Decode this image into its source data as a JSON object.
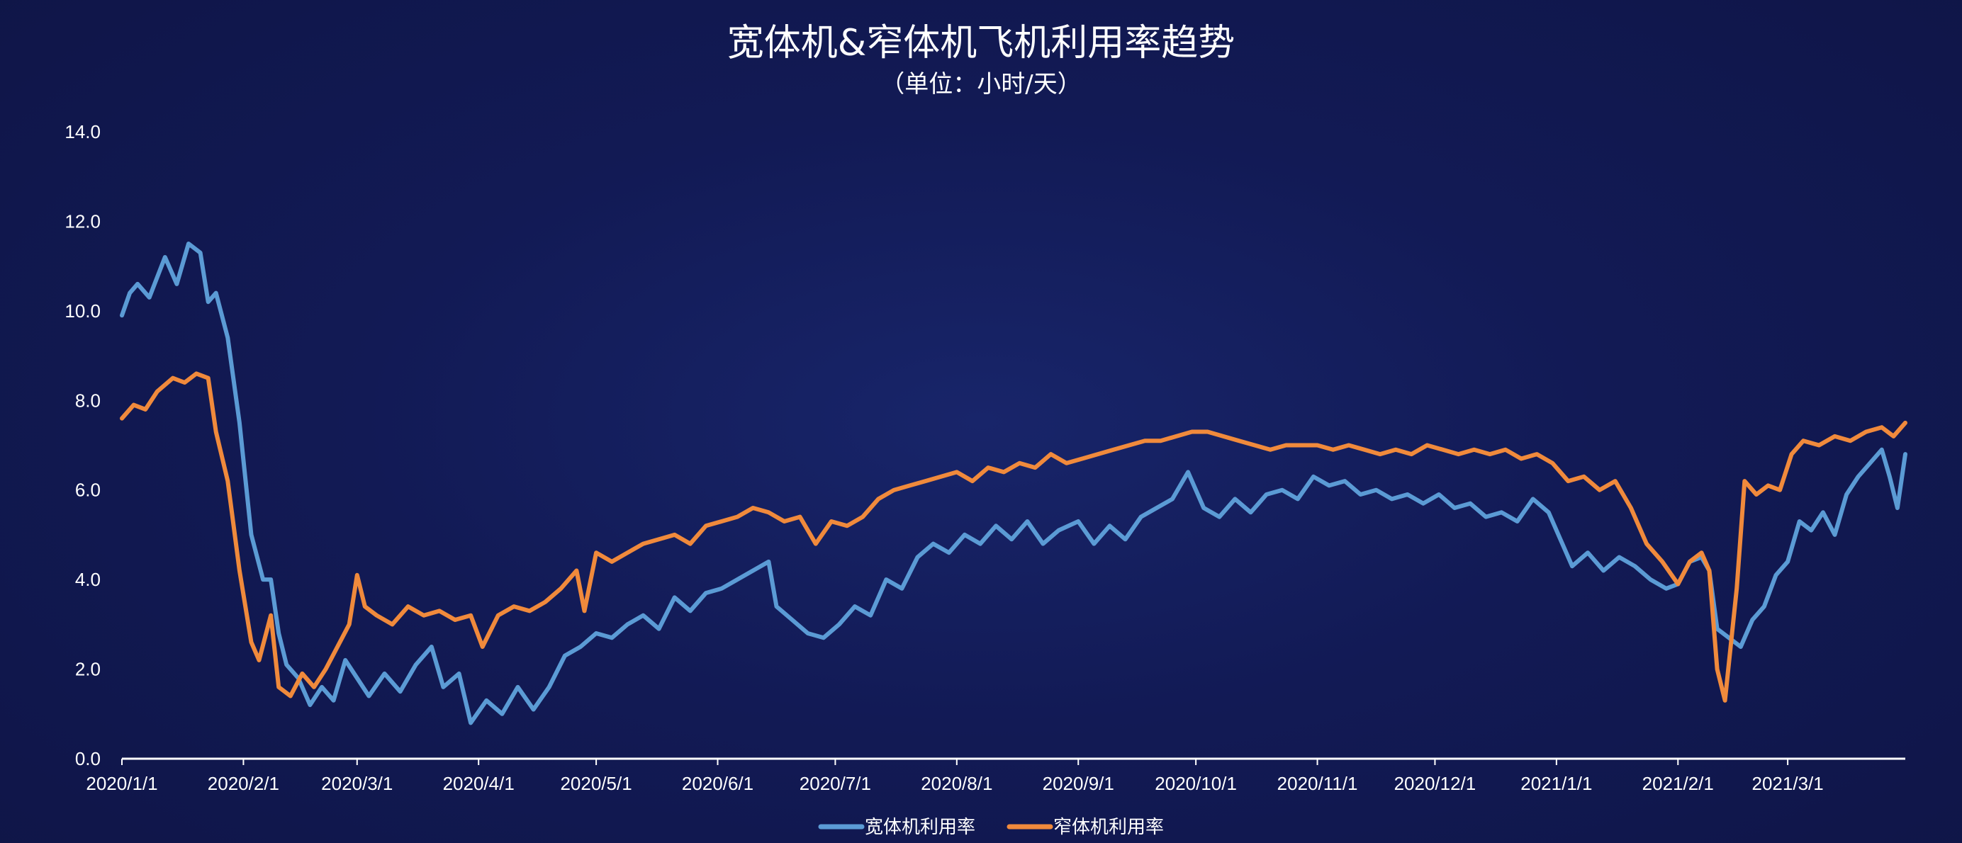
{
  "chart_data": {
    "type": "line",
    "title": "宽体机&窄体机飞机利用率趋势",
    "subtitle": "（单位：小时/天）",
    "ylim": [
      0,
      14
    ],
    "y_ticks": [
      "0.0",
      "2.0",
      "4.0",
      "6.0",
      "8.0",
      "10.0",
      "12.0",
      "14.0"
    ],
    "x_range": [
      "2020/1/1",
      "2021/3/31"
    ],
    "x_ticks": [
      "2020/1/1",
      "2020/2/1",
      "2020/3/1",
      "2020/4/1",
      "2020/5/1",
      "2020/6/1",
      "2020/7/1",
      "2020/8/1",
      "2020/9/1",
      "2020/10/1",
      "2020/11/1",
      "2020/12/1",
      "2021/1/1",
      "2021/2/1",
      "2021/3/1"
    ],
    "grid": false,
    "legend_position": "bottom",
    "series": [
      {
        "name": "宽体机利用率",
        "color": "#5b9bd5",
        "points": [
          [
            "2020/1/1",
            9.9
          ],
          [
            "2020/1/3",
            10.4
          ],
          [
            "2020/1/5",
            10.6
          ],
          [
            "2020/1/8",
            10.3
          ],
          [
            "2020/1/12",
            11.2
          ],
          [
            "2020/1/15",
            10.6
          ],
          [
            "2020/1/18",
            11.5
          ],
          [
            "2020/1/21",
            11.3
          ],
          [
            "2020/1/23",
            10.2
          ],
          [
            "2020/1/25",
            10.4
          ],
          [
            "2020/1/28",
            9.4
          ],
          [
            "2020/1/31",
            7.5
          ],
          [
            "2020/2/3",
            5.0
          ],
          [
            "2020/2/6",
            4.0
          ],
          [
            "2020/2/8",
            4.0
          ],
          [
            "2020/2/10",
            2.8
          ],
          [
            "2020/2/12",
            2.1
          ],
          [
            "2020/2/15",
            1.8
          ],
          [
            "2020/2/18",
            1.2
          ],
          [
            "2020/2/21",
            1.6
          ],
          [
            "2020/2/24",
            1.3
          ],
          [
            "2020/2/27",
            2.2
          ],
          [
            "2020/3/1",
            1.8
          ],
          [
            "2020/3/4",
            1.4
          ],
          [
            "2020/3/8",
            1.9
          ],
          [
            "2020/3/12",
            1.5
          ],
          [
            "2020/3/16",
            2.1
          ],
          [
            "2020/3/20",
            2.5
          ],
          [
            "2020/3/23",
            1.6
          ],
          [
            "2020/3/27",
            1.9
          ],
          [
            "2020/3/30",
            0.8
          ],
          [
            "2020/4/3",
            1.3
          ],
          [
            "2020/4/7",
            1.0
          ],
          [
            "2020/4/11",
            1.6
          ],
          [
            "2020/4/15",
            1.1
          ],
          [
            "2020/4/19",
            1.6
          ],
          [
            "2020/4/23",
            2.3
          ],
          [
            "2020/4/27",
            2.5
          ],
          [
            "2020/5/1",
            2.8
          ],
          [
            "2020/5/5",
            2.7
          ],
          [
            "2020/5/9",
            3.0
          ],
          [
            "2020/5/13",
            3.2
          ],
          [
            "2020/5/17",
            2.9
          ],
          [
            "2020/5/21",
            3.6
          ],
          [
            "2020/5/25",
            3.3
          ],
          [
            "2020/5/29",
            3.7
          ],
          [
            "2020/6/2",
            3.8
          ],
          [
            "2020/6/6",
            4.0
          ],
          [
            "2020/6/10",
            4.2
          ],
          [
            "2020/6/14",
            4.4
          ],
          [
            "2020/6/16",
            3.4
          ],
          [
            "2020/6/20",
            3.1
          ],
          [
            "2020/6/24",
            2.8
          ],
          [
            "2020/6/28",
            2.7
          ],
          [
            "2020/7/2",
            3.0
          ],
          [
            "2020/7/6",
            3.4
          ],
          [
            "2020/7/10",
            3.2
          ],
          [
            "2020/7/14",
            4.0
          ],
          [
            "2020/7/18",
            3.8
          ],
          [
            "2020/7/22",
            4.5
          ],
          [
            "2020/7/26",
            4.8
          ],
          [
            "2020/7/30",
            4.6
          ],
          [
            "2020/8/3",
            5.0
          ],
          [
            "2020/8/7",
            4.8
          ],
          [
            "2020/8/11",
            5.2
          ],
          [
            "2020/8/15",
            4.9
          ],
          [
            "2020/8/19",
            5.3
          ],
          [
            "2020/8/23",
            4.8
          ],
          [
            "2020/8/27",
            5.1
          ],
          [
            "2020/9/1",
            5.3
          ],
          [
            "2020/9/5",
            4.8
          ],
          [
            "2020/9/9",
            5.2
          ],
          [
            "2020/9/13",
            4.9
          ],
          [
            "2020/9/17",
            5.4
          ],
          [
            "2020/9/21",
            5.6
          ],
          [
            "2020/9/25",
            5.8
          ],
          [
            "2020/9/29",
            6.4
          ],
          [
            "2020/10/3",
            5.6
          ],
          [
            "2020/10/7",
            5.4
          ],
          [
            "2020/10/11",
            5.8
          ],
          [
            "2020/10/15",
            5.5
          ],
          [
            "2020/10/19",
            5.9
          ],
          [
            "2020/10/23",
            6.0
          ],
          [
            "2020/10/27",
            5.8
          ],
          [
            "2020/10/31",
            6.3
          ],
          [
            "2020/11/4",
            6.1
          ],
          [
            "2020/11/8",
            6.2
          ],
          [
            "2020/11/12",
            5.9
          ],
          [
            "2020/11/16",
            6.0
          ],
          [
            "2020/11/20",
            5.8
          ],
          [
            "2020/11/24",
            5.9
          ],
          [
            "2020/11/28",
            5.7
          ],
          [
            "2020/12/2",
            5.9
          ],
          [
            "2020/12/6",
            5.6
          ],
          [
            "2020/12/10",
            5.7
          ],
          [
            "2020/12/14",
            5.4
          ],
          [
            "2020/12/18",
            5.5
          ],
          [
            "2020/12/22",
            5.3
          ],
          [
            "2020/12/26",
            5.8
          ],
          [
            "2020/12/30",
            5.5
          ],
          [
            "2021/1/2",
            4.9
          ],
          [
            "2021/1/5",
            4.3
          ],
          [
            "2021/1/9",
            4.6
          ],
          [
            "2021/1/13",
            4.2
          ],
          [
            "2021/1/17",
            4.5
          ],
          [
            "2021/1/21",
            4.3
          ],
          [
            "2021/1/25",
            4.0
          ],
          [
            "2021/1/29",
            3.8
          ],
          [
            "2021/2/1",
            3.9
          ],
          [
            "2021/2/4",
            4.4
          ],
          [
            "2021/2/7",
            4.5
          ],
          [
            "2021/2/9",
            4.2
          ],
          [
            "2021/2/11",
            2.9
          ],
          [
            "2021/2/14",
            2.7
          ],
          [
            "2021/2/17",
            2.5
          ],
          [
            "2021/2/20",
            3.1
          ],
          [
            "2021/2/23",
            3.4
          ],
          [
            "2021/2/26",
            4.1
          ],
          [
            "2021/3/1",
            4.4
          ],
          [
            "2021/3/4",
            5.3
          ],
          [
            "2021/3/7",
            5.1
          ],
          [
            "2021/3/10",
            5.5
          ],
          [
            "2021/3/13",
            5.0
          ],
          [
            "2021/3/16",
            5.9
          ],
          [
            "2021/3/19",
            6.3
          ],
          [
            "2021/3/22",
            6.6
          ],
          [
            "2021/3/25",
            6.9
          ],
          [
            "2021/3/27",
            6.3
          ],
          [
            "2021/3/29",
            5.6
          ],
          [
            "2021/3/31",
            6.8
          ]
        ]
      },
      {
        "name": "窄体机利用率",
        "color": "#f08a3c",
        "points": [
          [
            "2020/1/1",
            7.6
          ],
          [
            "2020/1/4",
            7.9
          ],
          [
            "2020/1/7",
            7.8
          ],
          [
            "2020/1/10",
            8.2
          ],
          [
            "2020/1/14",
            8.5
          ],
          [
            "2020/1/17",
            8.4
          ],
          [
            "2020/1/20",
            8.6
          ],
          [
            "2020/1/23",
            8.5
          ],
          [
            "2020/1/25",
            7.3
          ],
          [
            "2020/1/28",
            6.2
          ],
          [
            "2020/1/31",
            4.2
          ],
          [
            "2020/2/3",
            2.6
          ],
          [
            "2020/2/5",
            2.2
          ],
          [
            "2020/2/8",
            3.2
          ],
          [
            "2020/2/10",
            1.6
          ],
          [
            "2020/2/13",
            1.4
          ],
          [
            "2020/2/16",
            1.9
          ],
          [
            "2020/2/19",
            1.6
          ],
          [
            "2020/2/22",
            2.0
          ],
          [
            "2020/2/25",
            2.5
          ],
          [
            "2020/2/28",
            3.0
          ],
          [
            "2020/3/1",
            4.1
          ],
          [
            "2020/3/3",
            3.4
          ],
          [
            "2020/3/6",
            3.2
          ],
          [
            "2020/3/10",
            3.0
          ],
          [
            "2020/3/14",
            3.4
          ],
          [
            "2020/3/18",
            3.2
          ],
          [
            "2020/3/22",
            3.3
          ],
          [
            "2020/3/26",
            3.1
          ],
          [
            "2020/3/30",
            3.2
          ],
          [
            "2020/4/2",
            2.5
          ],
          [
            "2020/4/6",
            3.2
          ],
          [
            "2020/4/10",
            3.4
          ],
          [
            "2020/4/14",
            3.3
          ],
          [
            "2020/4/18",
            3.5
          ],
          [
            "2020/4/22",
            3.8
          ],
          [
            "2020/4/26",
            4.2
          ],
          [
            "2020/4/28",
            3.3
          ],
          [
            "2020/5/1",
            4.6
          ],
          [
            "2020/5/5",
            4.4
          ],
          [
            "2020/5/9",
            4.6
          ],
          [
            "2020/5/13",
            4.8
          ],
          [
            "2020/5/17",
            4.9
          ],
          [
            "2020/5/21",
            5.0
          ],
          [
            "2020/5/25",
            4.8
          ],
          [
            "2020/5/29",
            5.2
          ],
          [
            "2020/6/2",
            5.3
          ],
          [
            "2020/6/6",
            5.4
          ],
          [
            "2020/6/10",
            5.6
          ],
          [
            "2020/6/14",
            5.5
          ],
          [
            "2020/6/18",
            5.3
          ],
          [
            "2020/6/22",
            5.4
          ],
          [
            "2020/6/26",
            4.8
          ],
          [
            "2020/6/30",
            5.3
          ],
          [
            "2020/7/4",
            5.2
          ],
          [
            "2020/7/8",
            5.4
          ],
          [
            "2020/7/12",
            5.8
          ],
          [
            "2020/7/16",
            6.0
          ],
          [
            "2020/7/20",
            6.1
          ],
          [
            "2020/7/24",
            6.2
          ],
          [
            "2020/7/28",
            6.3
          ],
          [
            "2020/8/1",
            6.4
          ],
          [
            "2020/8/5",
            6.2
          ],
          [
            "2020/8/9",
            6.5
          ],
          [
            "2020/8/13",
            6.4
          ],
          [
            "2020/8/17",
            6.6
          ],
          [
            "2020/8/21",
            6.5
          ],
          [
            "2020/8/25",
            6.8
          ],
          [
            "2020/8/29",
            6.6
          ],
          [
            "2020/9/2",
            6.7
          ],
          [
            "2020/9/6",
            6.8
          ],
          [
            "2020/9/10",
            6.9
          ],
          [
            "2020/9/14",
            7.0
          ],
          [
            "2020/9/18",
            7.1
          ],
          [
            "2020/9/22",
            7.1
          ],
          [
            "2020/9/26",
            7.2
          ],
          [
            "2020/9/30",
            7.3
          ],
          [
            "2020/10/4",
            7.3
          ],
          [
            "2020/10/8",
            7.2
          ],
          [
            "2020/10/12",
            7.1
          ],
          [
            "2020/10/16",
            7.0
          ],
          [
            "2020/10/20",
            6.9
          ],
          [
            "2020/10/24",
            7.0
          ],
          [
            "2020/10/28",
            7.0
          ],
          [
            "2020/11/1",
            7.0
          ],
          [
            "2020/11/5",
            6.9
          ],
          [
            "2020/11/9",
            7.0
          ],
          [
            "2020/11/13",
            6.9
          ],
          [
            "2020/11/17",
            6.8
          ],
          [
            "2020/11/21",
            6.9
          ],
          [
            "2020/11/25",
            6.8
          ],
          [
            "2020/11/29",
            7.0
          ],
          [
            "2020/12/3",
            6.9
          ],
          [
            "2020/12/7",
            6.8
          ],
          [
            "2020/12/11",
            6.9
          ],
          [
            "2020/12/15",
            6.8
          ],
          [
            "2020/12/19",
            6.9
          ],
          [
            "2020/12/23",
            6.7
          ],
          [
            "2020/12/27",
            6.8
          ],
          [
            "2020/12/31",
            6.6
          ],
          [
            "2021/1/4",
            6.2
          ],
          [
            "2021/1/8",
            6.3
          ],
          [
            "2021/1/12",
            6.0
          ],
          [
            "2021/1/16",
            6.2
          ],
          [
            "2021/1/20",
            5.6
          ],
          [
            "2021/1/24",
            4.8
          ],
          [
            "2021/1/28",
            4.4
          ],
          [
            "2021/2/1",
            3.9
          ],
          [
            "2021/2/4",
            4.4
          ],
          [
            "2021/2/7",
            4.6
          ],
          [
            "2021/2/9",
            4.2
          ],
          [
            "2021/2/11",
            2.0
          ],
          [
            "2021/2/13",
            1.3
          ],
          [
            "2021/2/16",
            3.8
          ],
          [
            "2021/2/18",
            6.2
          ],
          [
            "2021/2/21",
            5.9
          ],
          [
            "2021/2/24",
            6.1
          ],
          [
            "2021/2/27",
            6.0
          ],
          [
            "2021/3/2",
            6.8
          ],
          [
            "2021/3/5",
            7.1
          ],
          [
            "2021/3/9",
            7.0
          ],
          [
            "2021/3/13",
            7.2
          ],
          [
            "2021/3/17",
            7.1
          ],
          [
            "2021/3/21",
            7.3
          ],
          [
            "2021/3/25",
            7.4
          ],
          [
            "2021/3/28",
            7.2
          ],
          [
            "2021/3/31",
            7.5
          ]
        ]
      }
    ]
  }
}
